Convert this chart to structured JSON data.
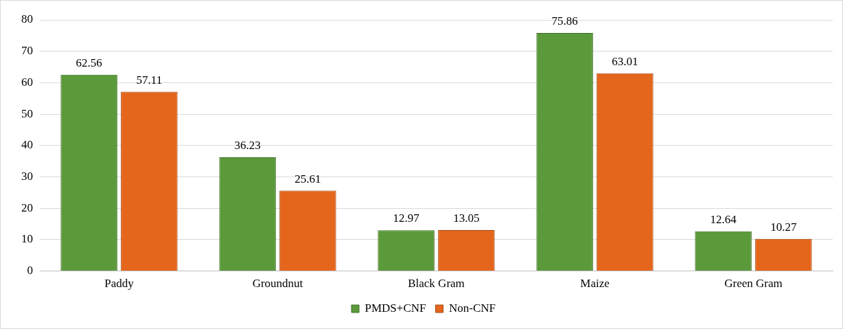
{
  "chart_data": {
    "type": "bar",
    "categories": [
      "Paddy",
      "Groundnut",
      "Black Gram",
      "Maize",
      "Green Gram"
    ],
    "series": [
      {
        "name": "PMDS+CNF",
        "color": "#5b9a3a",
        "values": [
          62.56,
          36.23,
          12.97,
          75.86,
          12.64
        ]
      },
      {
        "name": "Non-CNF",
        "color": "#e4661c",
        "values": [
          57.11,
          25.61,
          13.05,
          63.01,
          10.27
        ]
      }
    ],
    "ylim": [
      0,
      80
    ],
    "yticks": [
      0,
      10,
      20,
      30,
      40,
      50,
      60,
      70,
      80
    ],
    "grid": "y",
    "legend": "bottom",
    "data_labels": true
  }
}
